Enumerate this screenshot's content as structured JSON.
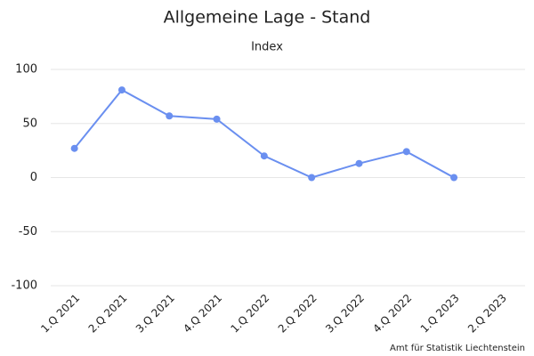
{
  "chart_data": {
    "type": "line",
    "title": "Allgemeine Lage - Stand",
    "subtitle": "Index",
    "credit": "Amt für Statistik Liechtenstein",
    "categories": [
      "1.Q 2021",
      "2.Q 2021",
      "3.Q 2021",
      "4.Q 2021",
      "1.Q 2022",
      "2.Q 2022",
      "3.Q 2022",
      "4.Q 2022",
      "1.Q 2023",
      "2.Q 2023"
    ],
    "series": [
      {
        "name": "Index",
        "color": "#6a8ff0",
        "values": [
          27,
          81,
          57,
          54,
          20,
          0,
          13,
          24,
          0,
          null
        ]
      }
    ],
    "ylim": [
      -100,
      100
    ],
    "yticks": [
      -100,
      -50,
      0,
      50,
      100
    ],
    "grid": true
  }
}
